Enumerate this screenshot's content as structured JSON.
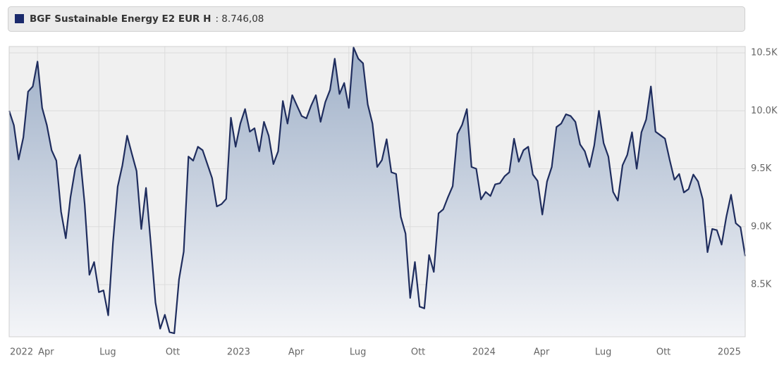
{
  "chart_data": {
    "type": "line",
    "series": [
      {
        "name": "BGF Sustainable Energy E2 EUR H",
        "color": "#1f2d5e",
        "values": [
          10000,
          9875,
          9580,
          9770,
          10165,
          10210,
          10425,
          10025,
          9875,
          9660,
          9570,
          9130,
          8900,
          9255,
          9500,
          9620,
          9195,
          8585,
          8695,
          8435,
          8450,
          8235,
          8860,
          9345,
          9530,
          9785,
          9630,
          9480,
          8980,
          9335,
          8860,
          8345,
          8120,
          8240,
          8090,
          8080,
          8545,
          8785,
          9605,
          9570,
          9690,
          9660,
          9540,
          9420,
          9175,
          9195,
          9240,
          9940,
          9690,
          9890,
          10015,
          9820,
          9850,
          9650,
          9905,
          9785,
          9540,
          9650,
          10085,
          9890,
          10135,
          10045,
          9955,
          9935,
          10045,
          10135,
          9905,
          10075,
          10180,
          10450,
          10145,
          10240,
          10025,
          10545,
          10450,
          10410,
          10055,
          9890,
          9515,
          9575,
          9755,
          9470,
          9455,
          9085,
          8940,
          8385,
          8695,
          8310,
          8295,
          8755,
          8610,
          9115,
          9150,
          9255,
          9350,
          9800,
          9880,
          10015,
          9515,
          9500,
          9235,
          9300,
          9265,
          9365,
          9375,
          9435,
          9470,
          9760,
          9560,
          9660,
          9690,
          9450,
          9395,
          9105,
          9390,
          9515,
          9860,
          9890,
          9970,
          9955,
          9905,
          9710,
          9650,
          9515,
          9700,
          10000,
          9720,
          9605,
          9300,
          9225,
          9530,
          9620,
          9815,
          9500,
          9815,
          9925,
          10210,
          9820,
          9790,
          9760,
          9575,
          9405,
          9455,
          9295,
          9325,
          9450,
          9390,
          9235,
          8780,
          8980,
          8970,
          8845,
          9085,
          9275,
          9030,
          8995,
          8746.08
        ]
      }
    ],
    "current_value": {
      "value": 8746.08,
      "label": ": 8.746,08"
    },
    "xticks": [
      {
        "value": 0,
        "label": "2022"
      },
      {
        "value": 6,
        "label": "Apr"
      },
      {
        "value": 19,
        "label": "Lug"
      },
      {
        "value": 33,
        "label": "Ott"
      },
      {
        "value": 46,
        "label": "2023"
      },
      {
        "value": 59,
        "label": "Apr"
      },
      {
        "value": 72,
        "label": "Lug"
      },
      {
        "value": 85,
        "label": "Ott"
      },
      {
        "value": 98,
        "label": "2024"
      },
      {
        "value": 111,
        "label": "Apr"
      },
      {
        "value": 124,
        "label": "Lug"
      },
      {
        "value": 137,
        "label": "Ott"
      },
      {
        "value": 150,
        "label": "2025"
      }
    ],
    "xlim": [
      0,
      156
    ],
    "ylim": [
      8050,
      10555
    ],
    "yticks": [
      {
        "value": 8500,
        "label": "8.5K"
      },
      {
        "value": 9000,
        "label": "9.0K"
      },
      {
        "value": 9500,
        "label": "9.5K"
      },
      {
        "value": 10000,
        "label": "10.0K"
      },
      {
        "value": 10500,
        "label": "10.5K"
      }
    ],
    "grid": true
  }
}
